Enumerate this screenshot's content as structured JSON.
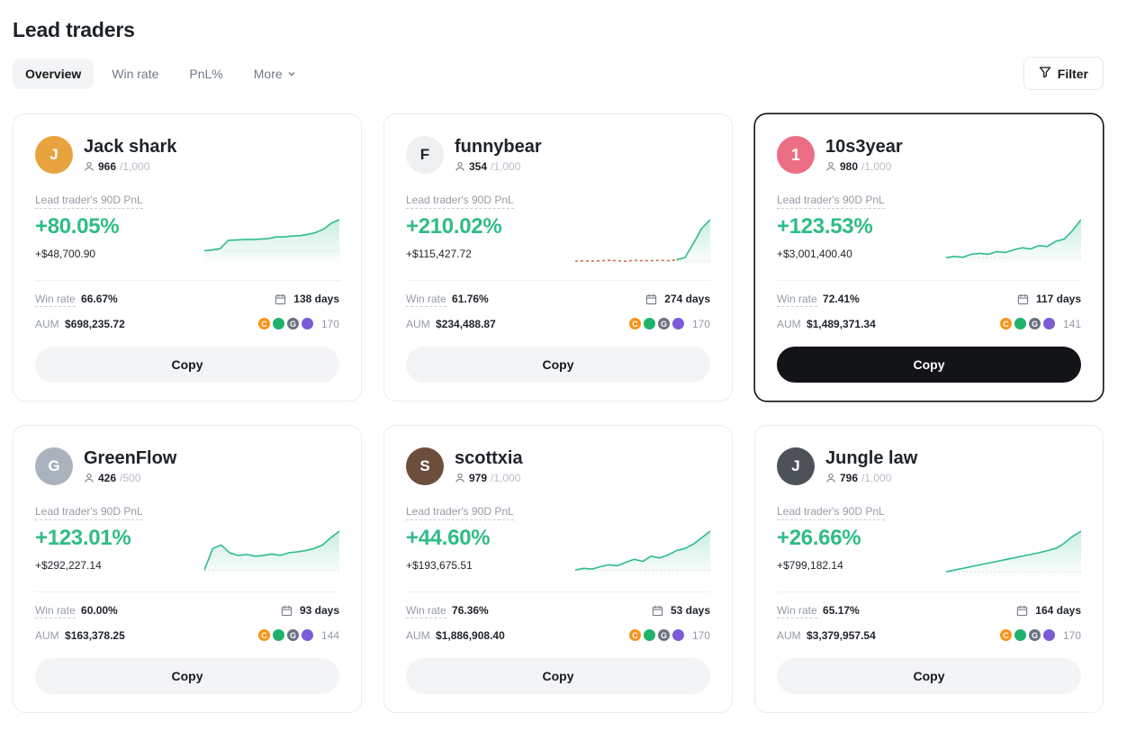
{
  "page": {
    "title": "Lead traders"
  },
  "tabs": [
    {
      "label": "Overview",
      "active": true
    },
    {
      "label": "Win rate",
      "active": false
    },
    {
      "label": "PnL%",
      "active": false
    },
    {
      "label": "More",
      "active": false,
      "has_dropdown": true
    }
  ],
  "filter": {
    "label": "Filter"
  },
  "labels": {
    "pnl": "Lead trader's 90D PnL",
    "win_rate": "Win rate",
    "aum": "AUM",
    "copy": "Copy"
  },
  "colors": {
    "green": "#2ebd85",
    "dashed_red": "#df6e52",
    "rank_badge": "#ec6e85"
  },
  "coin_icons": [
    {
      "label": "C"
    },
    {
      "label": ""
    },
    {
      "label": "G"
    },
    {
      "label": ""
    }
  ],
  "cards": [
    {
      "name": "Jack shark",
      "avatar_text": "J",
      "avatar_bg": "#e8a33e",
      "avatar_color": "#ffffff",
      "members": "966",
      "members_max": "/1,000",
      "pnl_pct": "+80.05%",
      "pnl_usd": "+$48,700.90",
      "win_rate": "66.67%",
      "days": "138 days",
      "aum": "$698,235.72",
      "coins_count": "170",
      "selected": false,
      "spark": [
        0.28,
        0.3,
        0.33,
        0.52,
        0.53,
        0.54,
        0.54,
        0.55,
        0.56,
        0.6,
        0.6,
        0.62,
        0.63,
        0.66,
        0.7,
        0.78,
        0.92,
        1.0
      ]
    },
    {
      "name": "funnybear",
      "avatar_text": "F",
      "avatar_bg": "#eef0f2",
      "avatar_color": "#1e2329",
      "members": "354",
      "members_max": "/1,000",
      "pnl_pct": "+210.02%",
      "pnl_usd": "+$115,427.72",
      "win_rate": "61.76%",
      "days": "274 days",
      "aum": "$234,488.87",
      "coins_count": "170",
      "selected": false,
      "spark": [
        0.04,
        0.05,
        0.04,
        0.05,
        0.06,
        0.05,
        0.04,
        0.06,
        0.05,
        0.05,
        0.06,
        0.05,
        0.07,
        0.12,
        0.45,
        0.8,
        1.0
      ],
      "spark_dashed_until": 13
    },
    {
      "name": "10s3year",
      "avatar_text": "1",
      "avatar_bg": "#ec6e85",
      "avatar_color": "#ffffff",
      "rank": true,
      "members": "980",
      "members_max": "/1,000",
      "pnl_pct": "+123.53%",
      "pnl_usd": "+$3,001,400.40",
      "win_rate": "72.41%",
      "days": "117 days",
      "aum": "$1,489,371.34",
      "coins_count": "141",
      "selected": true,
      "spark": [
        0.12,
        0.15,
        0.13,
        0.2,
        0.22,
        0.2,
        0.26,
        0.24,
        0.3,
        0.35,
        0.32,
        0.4,
        0.38,
        0.5,
        0.55,
        0.75,
        1.0
      ]
    },
    {
      "name": "GreenFlow",
      "avatar_text": "G",
      "avatar_bg": "#aab3bd",
      "avatar_color": "#ffffff",
      "members": "426",
      "members_max": "/500",
      "pnl_pct": "+123.01%",
      "pnl_usd": "+$292,227.14",
      "win_rate": "60.00%",
      "days": "93 days",
      "aum": "$163,378.25",
      "coins_count": "144",
      "selected": false,
      "spark": [
        0.1,
        0.6,
        0.68,
        0.5,
        0.44,
        0.46,
        0.42,
        0.44,
        0.47,
        0.44,
        0.5,
        0.52,
        0.55,
        0.6,
        0.68,
        0.85,
        1.0
      ]
    },
    {
      "name": "scottxia",
      "avatar_text": "S",
      "avatar_bg": "#6d4e3d",
      "avatar_color": "#ffffff",
      "members": "979",
      "members_max": "/1,000",
      "pnl_pct": "+44.60%",
      "pnl_usd": "+$193,675.51",
      "win_rate": "76.36%",
      "days": "53 days",
      "aum": "$1,886,908.40",
      "coins_count": "170",
      "selected": false,
      "spark": [
        0.1,
        0.14,
        0.12,
        0.18,
        0.22,
        0.2,
        0.28,
        0.35,
        0.3,
        0.42,
        0.38,
        0.45,
        0.55,
        0.6,
        0.7,
        0.85,
        1.0
      ]
    },
    {
      "name": "Jungle law",
      "avatar_text": "J",
      "avatar_bg": "#4c5258",
      "avatar_color": "#ffffff",
      "members": "796",
      "members_max": "/1,000",
      "pnl_pct": "+26.66%",
      "pnl_usd": "+$799,182.14",
      "win_rate": "65.17%",
      "days": "164 days",
      "aum": "$3,379,957.54",
      "coins_count": "170",
      "selected": false,
      "spark": [
        0.06,
        0.1,
        0.14,
        0.18,
        0.22,
        0.26,
        0.3,
        0.34,
        0.38,
        0.42,
        0.46,
        0.5,
        0.55,
        0.6,
        0.72,
        0.88,
        1.0
      ]
    }
  ]
}
